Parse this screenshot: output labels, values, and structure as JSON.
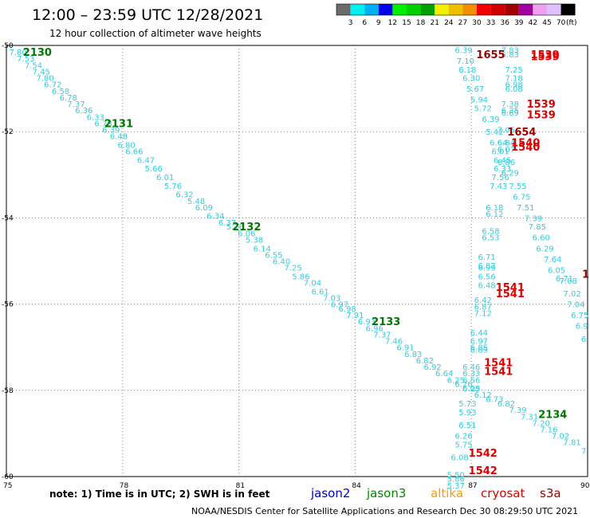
{
  "header": {
    "title": "12:00 – 23:59 UTC 12/28/2021",
    "subtitle": "12 hour collection of altimeter wave heights"
  },
  "legend": {
    "unit": "(ft)",
    "colors": [
      "#6b6b6b",
      "#00f0f0",
      "#00b0f0",
      "#0000f0",
      "#00f000",
      "#00d000",
      "#00a000",
      "#f0f000",
      "#f0c000",
      "#f09000",
      "#f00000",
      "#d00000",
      "#a00000",
      "#a000a0",
      "#f0a0f0",
      "#e0c0ff",
      "#000000"
    ],
    "ticks": [
      "3",
      "6",
      "9",
      "12",
      "15",
      "18",
      "21",
      "24",
      "27",
      "30",
      "33",
      "36",
      "39",
      "42",
      "45",
      "70"
    ]
  },
  "footer": {
    "note": "note: 1) Time is in UTC; 2) SWH is in feet",
    "credit": "NOAA/NESDIS Center for Satellite Applications and Research    Dec 30 08:29:50 UTC 2021"
  },
  "satellites": [
    {
      "name": "jason2",
      "color": "#0000cc"
    },
    {
      "name": "jason3",
      "color": "#008800"
    },
    {
      "name": "altika",
      "color": "#ff9900"
    },
    {
      "name": "cryosat",
      "color": "#dd0000"
    },
    {
      "name": "s3a",
      "color": "#990000"
    }
  ],
  "chart_data": {
    "type": "scatter",
    "title": "12:00 – 23:59 UTC 12/28/2021",
    "subtitle": "12 hour collection of altimeter wave heights",
    "xlim": [
      75,
      90
    ],
    "ylim": [
      -60,
      -50
    ],
    "x_ticks": [
      75,
      78,
      81,
      84,
      87,
      90
    ],
    "y_ticks": [
      -50,
      -52,
      -54,
      -56,
      -58,
      -60
    ],
    "x_tick_labels": [
      "75",
      "78",
      "81",
      "84",
      "87",
      "90"
    ],
    "y_tick_labels": [
      "-50",
      "-52",
      "-54",
      "-56",
      "-58",
      "-60"
    ],
    "grid": true,
    "point_color": "#33ccdd",
    "pass_labels": [
      {
        "text": "2130",
        "x": 75.8,
        "y": -50.15,
        "color": "#007700"
      },
      {
        "text": "2131",
        "x": 77.9,
        "y": -51.8,
        "color": "#007700"
      },
      {
        "text": "2132",
        "x": 81.2,
        "y": -54.2,
        "color": "#007700"
      },
      {
        "text": "2133",
        "x": 84.8,
        "y": -56.4,
        "color": "#007700"
      },
      {
        "text": "2134",
        "x": 89.1,
        "y": -58.55,
        "color": "#007700"
      },
      {
        "text": "1655",
        "x": 87.5,
        "y": -50.2,
        "color": "#990000"
      },
      {
        "text": "1539",
        "x": 88.9,
        "y": -50.2,
        "color": "#dd0000"
      },
      {
        "text": "1539",
        "x": 88.9,
        "y": -50.25,
        "color": "#dd0000"
      },
      {
        "text": "1539",
        "x": 88.8,
        "y": -51.35,
        "color": "#dd0000"
      },
      {
        "text": "1539",
        "x": 88.8,
        "y": -51.6,
        "color": "#dd0000"
      },
      {
        "text": "1654",
        "x": 88.3,
        "y": -52.0,
        "color": "#990000"
      },
      {
        "text": "1540",
        "x": 88.4,
        "y": -52.25,
        "color": "#dd0000"
      },
      {
        "text": "1540",
        "x": 88.4,
        "y": -52.35,
        "color": "#dd0000"
      },
      {
        "text": "1541",
        "x": 88.0,
        "y": -55.6,
        "color": "#dd0000"
      },
      {
        "text": "1541",
        "x": 88.0,
        "y": -55.75,
        "color": "#dd0000"
      },
      {
        "text": "1",
        "x": 89.95,
        "y": -55.3,
        "color": "#990000"
      },
      {
        "text": "1541",
        "x": 87.7,
        "y": -57.35,
        "color": "#dd0000"
      },
      {
        "text": "1541",
        "x": 87.7,
        "y": -57.55,
        "color": "#dd0000"
      },
      {
        "text": "1542",
        "x": 87.3,
        "y": -59.45,
        "color": "#dd0000"
      },
      {
        "text": "1542",
        "x": 87.3,
        "y": -59.85,
        "color": "#dd0000"
      }
    ],
    "points": [
      {
        "x": 75.3,
        "y": -50.15,
        "v": "7.80"
      },
      {
        "x": 75.5,
        "y": -50.3,
        "v": "7.53"
      },
      {
        "x": 75.7,
        "y": -50.45,
        "v": "7.54"
      },
      {
        "x": 75.9,
        "y": -50.6,
        "v": "7.45"
      },
      {
        "x": 76.0,
        "y": -50.75,
        "v": "7.80"
      },
      {
        "x": 76.2,
        "y": -50.9,
        "v": "6.72"
      },
      {
        "x": 76.4,
        "y": -51.05,
        "v": "6.58"
      },
      {
        "x": 76.6,
        "y": -51.2,
        "v": "6.78"
      },
      {
        "x": 76.8,
        "y": -51.35,
        "v": "7.37"
      },
      {
        "x": 77.0,
        "y": -51.5,
        "v": "6.36"
      },
      {
        "x": 77.3,
        "y": -51.65,
        "v": "6.33"
      },
      {
        "x": 77.5,
        "y": -51.8,
        "v": "6.78"
      },
      {
        "x": 77.7,
        "y": -51.95,
        "v": "6.39"
      },
      {
        "x": 77.9,
        "y": -52.1,
        "v": "6.48"
      },
      {
        "x": 78.1,
        "y": -52.3,
        "v": "6.80"
      },
      {
        "x": 78.3,
        "y": -52.45,
        "v": "6.66"
      },
      {
        "x": 78.6,
        "y": -52.65,
        "v": "6.47"
      },
      {
        "x": 78.8,
        "y": -52.85,
        "v": "5.66"
      },
      {
        "x": 79.1,
        "y": -53.05,
        "v": "6.01"
      },
      {
        "x": 79.3,
        "y": -53.25,
        "v": "5.76"
      },
      {
        "x": 79.6,
        "y": -53.45,
        "v": "6.32"
      },
      {
        "x": 79.9,
        "y": -53.6,
        "v": "5.48"
      },
      {
        "x": 80.1,
        "y": -53.75,
        "v": "6.09"
      },
      {
        "x": 80.4,
        "y": -53.95,
        "v": "6.34"
      },
      {
        "x": 80.7,
        "y": -54.1,
        "v": "6.37"
      },
      {
        "x": 80.9,
        "y": -54.2,
        "v": "5.76"
      },
      {
        "x": 81.2,
        "y": -54.35,
        "v": "6.06"
      },
      {
        "x": 81.4,
        "y": -54.5,
        "v": "5.38"
      },
      {
        "x": 81.6,
        "y": -54.7,
        "v": "6.14"
      },
      {
        "x": 81.9,
        "y": -54.85,
        "v": "6.55"
      },
      {
        "x": 82.1,
        "y": -55.0,
        "v": "6.40"
      },
      {
        "x": 82.4,
        "y": -55.15,
        "v": "7.25"
      },
      {
        "x": 82.6,
        "y": -55.35,
        "v": "5.86"
      },
      {
        "x": 82.9,
        "y": -55.5,
        "v": "7.04"
      },
      {
        "x": 83.1,
        "y": -55.7,
        "v": "6.61"
      },
      {
        "x": 83.4,
        "y": -55.85,
        "v": "7.03"
      },
      {
        "x": 83.6,
        "y": -56.0,
        "v": "6.97"
      },
      {
        "x": 83.8,
        "y": -56.1,
        "v": "6.98"
      },
      {
        "x": 84.0,
        "y": -56.25,
        "v": "7.91"
      },
      {
        "x": 84.3,
        "y": -56.4,
        "v": "6.93"
      },
      {
        "x": 84.5,
        "y": -56.55,
        "v": "6.96"
      },
      {
        "x": 84.7,
        "y": -56.7,
        "v": "7.37"
      },
      {
        "x": 85.0,
        "y": -56.85,
        "v": "7.46"
      },
      {
        "x": 85.3,
        "y": -57.0,
        "v": "6.91"
      },
      {
        "x": 85.5,
        "y": -57.15,
        "v": "6.83"
      },
      {
        "x": 85.8,
        "y": -57.3,
        "v": "6.82"
      },
      {
        "x": 86.0,
        "y": -57.45,
        "v": "6.92"
      },
      {
        "x": 86.3,
        "y": -57.6,
        "v": "6.64"
      },
      {
        "x": 86.6,
        "y": -57.75,
        "v": "6.25"
      },
      {
        "x": 86.8,
        "y": -57.85,
        "v": "6.26"
      },
      {
        "x": 87.0,
        "y": -57.95,
        "v": "6.05"
      },
      {
        "x": 87.3,
        "y": -58.1,
        "v": "6.12"
      },
      {
        "x": 87.6,
        "y": -58.2,
        "v": "6.73"
      },
      {
        "x": 87.9,
        "y": -58.3,
        "v": "6.82"
      },
      {
        "x": 88.2,
        "y": -58.45,
        "v": "7.39"
      },
      {
        "x": 88.5,
        "y": -58.6,
        "v": "7.31"
      },
      {
        "x": 88.8,
        "y": -58.75,
        "v": "7.20"
      },
      {
        "x": 89.0,
        "y": -58.9,
        "v": "7.16"
      },
      {
        "x": 89.3,
        "y": -59.05,
        "v": "7.02"
      },
      {
        "x": 89.6,
        "y": -59.2,
        "v": "7.81"
      },
      {
        "x": 89.9,
        "y": -59.4,
        "v": "7"
      },
      {
        "x": 86.8,
        "y": -50.1,
        "v": "6.39"
      },
      {
        "x": 86.85,
        "y": -50.35,
        "v": "7.10"
      },
      {
        "x": 86.9,
        "y": -50.55,
        "v": "6.18"
      },
      {
        "x": 87.0,
        "y": -50.75,
        "v": "6.30"
      },
      {
        "x": 87.1,
        "y": -51.0,
        "v": "5.67"
      },
      {
        "x": 87.2,
        "y": -51.25,
        "v": "5.94"
      },
      {
        "x": 87.3,
        "y": -51.45,
        "v": "5.72"
      },
      {
        "x": 87.5,
        "y": -51.7,
        "v": "6.39"
      },
      {
        "x": 87.6,
        "y": -52.0,
        "v": "5.42"
      },
      {
        "x": 87.7,
        "y": -52.25,
        "v": "6.64"
      },
      {
        "x": 87.75,
        "y": -52.45,
        "v": "6.01"
      },
      {
        "x": 87.8,
        "y": -52.65,
        "v": "6.45"
      },
      {
        "x": 87.8,
        "y": -52.85,
        "v": "6.33"
      },
      {
        "x": 87.75,
        "y": -53.05,
        "v": "7.56"
      },
      {
        "x": 87.7,
        "y": -53.25,
        "v": "7.43"
      },
      {
        "x": 87.6,
        "y": -53.75,
        "v": "6.18"
      },
      {
        "x": 87.6,
        "y": -53.9,
        "v": "6.12"
      },
      {
        "x": 87.5,
        "y": -54.3,
        "v": "6.58"
      },
      {
        "x": 87.5,
        "y": -54.45,
        "v": "6.53"
      },
      {
        "x": 88.0,
        "y": -50.1,
        "v": "7.83"
      },
      {
        "x": 88.0,
        "y": -50.2,
        "v": "6.83"
      },
      {
        "x": 88.1,
        "y": -50.55,
        "v": "7.25"
      },
      {
        "x": 88.1,
        "y": -50.75,
        "v": "7.18"
      },
      {
        "x": 88.1,
        "y": -50.9,
        "v": "6.98"
      },
      {
        "x": 88.1,
        "y": -51.0,
        "v": "6.08"
      },
      {
        "x": 88.0,
        "y": -51.35,
        "v": "7.38"
      },
      {
        "x": 88.0,
        "y": -51.5,
        "v": "6.35"
      },
      {
        "x": 88.0,
        "y": -51.55,
        "v": "6.89"
      },
      {
        "x": 87.9,
        "y": -51.95,
        "v": "7.05"
      },
      {
        "x": 87.9,
        "y": -52.25,
        "v": "6.84"
      },
      {
        "x": 87.9,
        "y": -52.4,
        "v": "6.07"
      },
      {
        "x": 87.9,
        "y": -52.7,
        "v": "6.86"
      },
      {
        "x": 88.0,
        "y": -52.95,
        "v": "6.29"
      },
      {
        "x": 88.2,
        "y": -53.25,
        "v": "7.55"
      },
      {
        "x": 88.3,
        "y": -53.5,
        "v": "6.75"
      },
      {
        "x": 88.4,
        "y": -53.75,
        "v": "7.51"
      },
      {
        "x": 88.6,
        "y": -54.0,
        "v": "7.39"
      },
      {
        "x": 88.7,
        "y": -54.2,
        "v": "7.85"
      },
      {
        "x": 88.8,
        "y": -54.45,
        "v": "6.60"
      },
      {
        "x": 88.9,
        "y": -54.7,
        "v": "6.29"
      },
      {
        "x": 89.1,
        "y": -54.95,
        "v": "7.64"
      },
      {
        "x": 89.2,
        "y": -55.2,
        "v": "6.05"
      },
      {
        "x": 89.4,
        "y": -55.4,
        "v": "6.71"
      },
      {
        "x": 89.5,
        "y": -55.45,
        "v": "7.08"
      },
      {
        "x": 89.6,
        "y": -55.75,
        "v": "7.02"
      },
      {
        "x": 89.7,
        "y": -56.0,
        "v": "7.04"
      },
      {
        "x": 89.8,
        "y": -56.25,
        "v": "6.75"
      },
      {
        "x": 89.85,
        "y": -56.5,
        "v": "6.9"
      },
      {
        "x": 89.9,
        "y": -56.8,
        "v": "6"
      },
      {
        "x": 87.4,
        "y": -54.9,
        "v": "6.71"
      },
      {
        "x": 87.4,
        "y": -55.1,
        "v": "6.87"
      },
      {
        "x": 87.4,
        "y": -55.15,
        "v": "6.99"
      },
      {
        "x": 87.4,
        "y": -55.35,
        "v": "6.56"
      },
      {
        "x": 87.4,
        "y": -55.55,
        "v": "6.48"
      },
      {
        "x": 87.3,
        "y": -55.9,
        "v": "6.42"
      },
      {
        "x": 87.3,
        "y": -56.05,
        "v": "6.87"
      },
      {
        "x": 87.3,
        "y": -56.2,
        "v": "7.12"
      },
      {
        "x": 87.2,
        "y": -56.65,
        "v": "6.44"
      },
      {
        "x": 87.2,
        "y": -56.85,
        "v": "6.97"
      },
      {
        "x": 87.2,
        "y": -57.0,
        "v": "6.85"
      },
      {
        "x": 87.2,
        "y": -57.05,
        "v": "6.89"
      },
      {
        "x": 87.0,
        "y": -57.45,
        "v": "6.46"
      },
      {
        "x": 87.0,
        "y": -57.6,
        "v": "6.33"
      },
      {
        "x": 87.0,
        "y": -57.75,
        "v": "6.56"
      },
      {
        "x": 87.0,
        "y": -57.95,
        "v": "6.29"
      },
      {
        "x": 86.9,
        "y": -58.3,
        "v": "5.73"
      },
      {
        "x": 86.9,
        "y": -58.5,
        "v": "5.93"
      },
      {
        "x": 86.9,
        "y": -58.8,
        "v": "6.51"
      },
      {
        "x": 86.8,
        "y": -59.05,
        "v": "6.26"
      },
      {
        "x": 86.8,
        "y": -59.25,
        "v": "5.75"
      },
      {
        "x": 86.7,
        "y": -59.55,
        "v": "6.08"
      },
      {
        "x": 86.6,
        "y": -59.95,
        "v": "5.50"
      },
      {
        "x": 86.6,
        "y": -60.05,
        "v": "5.86"
      },
      {
        "x": 86.6,
        "y": -60.2,
        "v": "5.37"
      }
    ]
  }
}
